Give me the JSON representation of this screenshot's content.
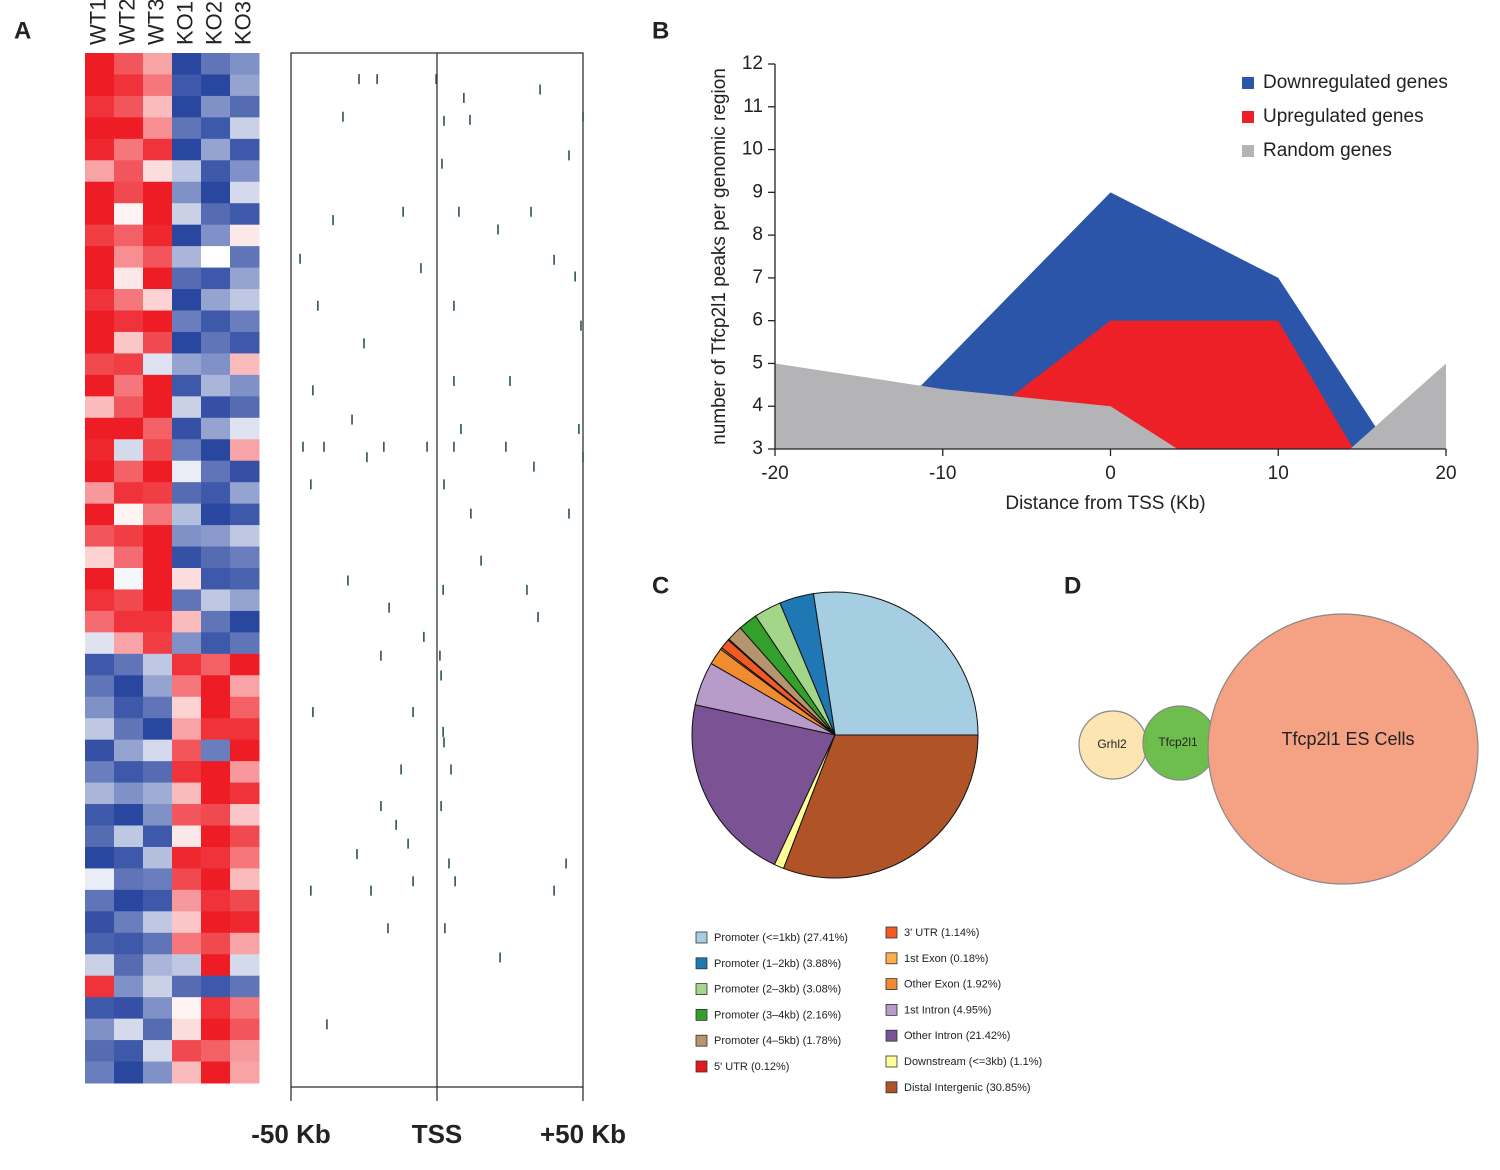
{
  "panels": [
    "A",
    "B",
    "C",
    "D"
  ],
  "chart_data": [
    {
      "type": "heatmap",
      "categories": [
        "WT1",
        "WT2",
        "WT3",
        "KO1",
        "KO2",
        "KO3"
      ],
      "zlim": [
        -2,
        2
      ],
      "colors": [
        "#2a47a0",
        "#ffffff",
        "#ee1c24"
      ],
      "values": [
        [
          2,
          1.5,
          0.8,
          -2,
          -1.5,
          -1.2
        ],
        [
          2,
          1.8,
          1.2,
          -1.8,
          -2,
          -1
        ],
        [
          1.8,
          1.5,
          0.6,
          -2,
          -1.2,
          -1.6
        ],
        [
          2,
          2,
          1,
          -1.5,
          -1.8,
          -0.5
        ],
        [
          1.9,
          1.2,
          1.8,
          -2,
          -1,
          -1.8
        ],
        [
          0.8,
          1.5,
          0.3,
          -0.6,
          -1.8,
          -1.2
        ],
        [
          2,
          1.6,
          2,
          -1.2,
          -2,
          -0.4
        ],
        [
          2,
          0.1,
          2,
          -0.5,
          -1.6,
          -1.8
        ],
        [
          1.7,
          1.4,
          1.9,
          -2,
          -1.2,
          0.2
        ],
        [
          2,
          1,
          1.5,
          -0.8,
          0,
          -1.5
        ],
        [
          2,
          0.2,
          2,
          -1.6,
          -1.8,
          -1
        ],
        [
          1.8,
          1.2,
          0.4,
          -2,
          -1,
          -0.6
        ],
        [
          2,
          1.8,
          2,
          -1.4,
          -1.8,
          -1.4
        ],
        [
          2,
          0.5,
          1.6,
          -2,
          -1.5,
          -1.8
        ],
        [
          1.6,
          1.7,
          -0.3,
          -1,
          -1.2,
          0.6
        ],
        [
          2,
          1.2,
          2,
          -1.8,
          -0.8,
          -1.2
        ],
        [
          0.6,
          1.5,
          2,
          -0.5,
          -1.9,
          -1.6
        ],
        [
          2,
          2,
          1.4,
          -1.9,
          -1,
          -0.3
        ],
        [
          1.9,
          -0.4,
          1.6,
          -1.4,
          -2,
          0.8
        ],
        [
          2,
          1.4,
          2,
          -0.2,
          -1.5,
          -1.9
        ],
        [
          0.9,
          1.8,
          1.7,
          -1.6,
          -1.8,
          -1
        ],
        [
          2,
          0.1,
          1.2,
          -0.7,
          -2,
          -1.8
        ],
        [
          1.5,
          1.7,
          2,
          -1.2,
          -1.1,
          -0.6
        ],
        [
          0.4,
          1.3,
          2,
          -1.9,
          -1.6,
          -1.4
        ],
        [
          2,
          -0.1,
          2,
          0.3,
          -1.8,
          -1.7
        ],
        [
          1.8,
          1.6,
          2,
          -1.5,
          -0.6,
          -1
        ],
        [
          1.3,
          1.8,
          1.8,
          0.6,
          -1.5,
          -2
        ],
        [
          -0.3,
          0.8,
          1.7,
          -1.2,
          -1.8,
          -1.5
        ],
        [
          -1.8,
          -1.5,
          -0.6,
          1.8,
          1.4,
          2
        ],
        [
          -1.5,
          -2,
          -1,
          1.2,
          2,
          0.8
        ],
        [
          -1.2,
          -1.8,
          -1.5,
          0.4,
          2,
          1.4
        ],
        [
          -0.6,
          -1.5,
          -2,
          0.8,
          1.8,
          1.8
        ],
        [
          -1.9,
          -1,
          -0.4,
          1.5,
          -1.4,
          2
        ],
        [
          -1.4,
          -1.8,
          -1.6,
          1.8,
          2,
          0.9
        ],
        [
          -0.8,
          -1.2,
          -0.9,
          0.6,
          2,
          1.8
        ],
        [
          -1.8,
          -2,
          -1.2,
          1.5,
          1.6,
          0.5
        ],
        [
          -1.6,
          -0.6,
          -1.8,
          0.2,
          2,
          1.6
        ],
        [
          -2,
          -1.8,
          -0.7,
          1.9,
          1.8,
          1.2
        ],
        [
          -0.2,
          -1.5,
          -1.4,
          1.6,
          2,
          0.6
        ],
        [
          -1.5,
          -2,
          -1.8,
          0.9,
          1.8,
          1.6
        ],
        [
          -1.9,
          -1.4,
          -0.6,
          0.5,
          2,
          1.9
        ],
        [
          -1.7,
          -1.8,
          -1.5,
          1.2,
          1.6,
          0.8
        ],
        [
          -0.5,
          -1.6,
          -0.8,
          -0.6,
          2,
          -0.4
        ],
        [
          1.8,
          -1.2,
          -0.5,
          -1.6,
          -1.8,
          -1.5
        ],
        [
          -1.8,
          -1.9,
          -1.2,
          0.1,
          1.8,
          1.2
        ],
        [
          -1.2,
          -0.4,
          -1.6,
          0.3,
          2,
          1.5
        ],
        [
          -1.6,
          -1.8,
          -0.4,
          1.6,
          1.4,
          0.9
        ],
        [
          -1.4,
          -2,
          -1.2,
          0.6,
          2,
          0.8
        ]
      ]
    },
    {
      "type": "scatter",
      "color": "#1e4a3a",
      "x": [
        -26.7,
        -20.5,
        -0.3,
        35.3,
        9.2,
        -32.2,
        2.4,
        11.3,
        50,
        45.2,
        1.7,
        -11.6,
        7.5,
        32.2,
        -35.6,
        20.9,
        -46.9,
        -5.5,
        40.1,
        47.3,
        -40.8,
        5.8,
        49.3,
        -25,
        -42.5,
        5.8,
        25,
        -29.1,
        8.2,
        48.6,
        -45.9,
        -38.7,
        -24,
        -18.2,
        -3.4,
        5.8,
        23.6,
        50,
        33.2,
        -43.2,
        2.4,
        11.6,
        45.2,
        15.1,
        -30.5,
        2.1,
        30.8,
        -16.4,
        34.6,
        -4.5,
        -19.2,
        1,
        1.4,
        -42.5,
        -8.2,
        2.1,
        2.4,
        -12.3,
        4.8,
        -19.2,
        1.4,
        -14,
        -9.9,
        -27.4,
        4.1,
        44.2,
        -8.2,
        6.2,
        -43.2,
        -22.6,
        40.1,
        -16.8,
        2.7,
        21.6,
        -37.7
      ],
      "values": [
        2.5,
        2.5,
        2.5,
        3.5,
        4.3,
        6.1,
        6.5,
        6.4,
        6.1,
        9.8,
        10.6,
        15.2,
        15.2,
        15.2,
        16,
        16.9,
        19.7,
        20.6,
        19.8,
        21.4,
        24.2,
        24.2,
        26.1,
        27.8,
        32.3,
        31.4,
        31.4,
        35.1,
        36,
        36,
        37.7,
        37.7,
        38.7,
        37.7,
        37.7,
        37.7,
        37.7,
        38.7,
        39.6,
        41.3,
        41.3,
        44.1,
        44.1,
        48.6,
        50.5,
        51.4,
        51.4,
        53.1,
        54,
        55.9,
        57.7,
        57.7,
        59.6,
        63.1,
        63.1,
        65,
        66,
        68.6,
        68.6,
        72.1,
        72.1,
        73.9,
        75.7,
        76.7,
        77.6,
        77.6,
        79.3,
        79.3,
        80.2,
        80.2,
        80.2,
        83.8,
        83.8,
        86.6,
        93
      ],
      "xlim": [
        -50,
        50
      ],
      "ylim": [
        0,
        99
      ],
      "yreverse": true,
      "vlines": [
        0
      ],
      "xticks": [
        {
          "value": -50,
          "label": "-50 Kb"
        },
        {
          "value": 0,
          "label": "TSS"
        },
        {
          "value": 50,
          "label": "+50 Kb"
        }
      ]
    },
    {
      "type": "area",
      "x": [
        -20,
        -10,
        0,
        10,
        20
      ],
      "series": [
        {
          "name": "Downregulated genes",
          "color": "#2b55a8",
          "values": [
            1,
            5,
            9,
            7,
            1
          ]
        },
        {
          "name": "Upregulated genes",
          "color": "#ed2027",
          "values": [
            2,
            3,
            6,
            6,
            -0.7
          ]
        },
        {
          "name": "Random genes",
          "color": "#b4b4b6",
          "values": [
            5,
            4.4,
            4,
            1.5,
            5
          ]
        }
      ],
      "xlim": [
        -20,
        20
      ],
      "ylim": [
        3,
        12
      ],
      "xticks": [
        -20,
        -10,
        0,
        10,
        20
      ],
      "yticks": [
        3,
        4,
        5,
        6,
        7,
        8,
        9,
        10,
        11,
        12
      ],
      "xlabel": "Distance from TSS (Kb)",
      "ylabel": "number of Tfcp2l1 peaks per genomic region",
      "legend": "top-right"
    },
    {
      "type": "pie",
      "categories": [
        "Promoter (<=1kb)",
        "Promoter (1–2kb)",
        "Promoter (2–3kb)",
        "Promoter (3–4kb)",
        "Promoter (4–5kb)",
        "5' UTR",
        "3' UTR",
        "1st Exon",
        "Other Exon",
        "1st Intron",
        "Other Intron",
        "Downstream (<=3kb)",
        "Distal Intergenic"
      ],
      "values": [
        27.41,
        3.88,
        3.08,
        2.16,
        1.78,
        0.12,
        1.14,
        0.18,
        1.92,
        4.95,
        21.42,
        1.1,
        30.85
      ],
      "value_labels": [
        "(27.41%)",
        "(3.88%)",
        "(3.08%)",
        "(2.16%)",
        "(1.78%)",
        "(0.12%)",
        "(1.14%)",
        "(0.18%)",
        "(1.92%)",
        "(4.95%)",
        "(21.42%)",
        "(1.1%)",
        "(30.85%)"
      ],
      "colors": [
        "#a6cee3",
        "#1f78b4",
        "#a4d68a",
        "#33a02c",
        "#b4956e",
        "#e31a1c",
        "#f15a24",
        "#fdae4b",
        "#f08b30",
        "#b79bc8",
        "#7b5294",
        "#ffff99",
        "#b05327"
      ]
    },
    {
      "type": "venn",
      "sets": [
        "Grhl2",
        "Tfcp2l1",
        "Tfcp2l1 ES Cells"
      ],
      "colors": [
        "#fde5b2",
        "#66bb44",
        "#f4a184"
      ]
    }
  ]
}
